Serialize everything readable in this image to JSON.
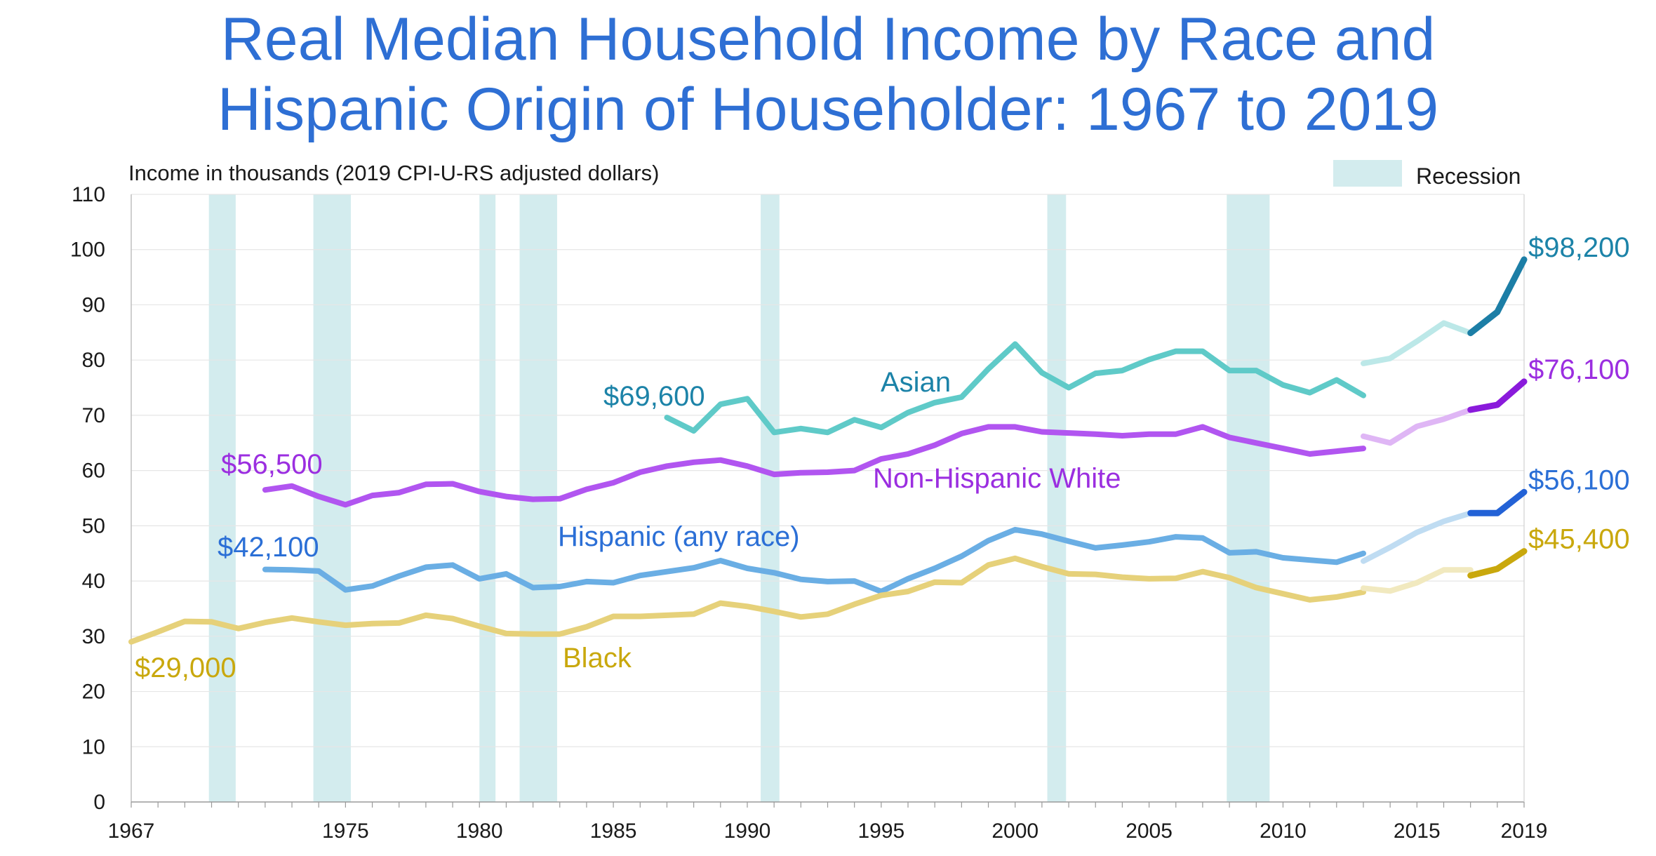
{
  "chart_data": {
    "type": "line",
    "title_lines": [
      "Real Median Household Income by Race and",
      "Hispanic Origin of Householder: 1967 to 2019"
    ],
    "ylabel": "Income in thousands (2019 CPI-U-RS adjusted dollars)",
    "xlabel": "",
    "ylim": [
      0,
      110
    ],
    "xlim": [
      1967,
      2019
    ],
    "yticks": [
      0,
      10,
      20,
      30,
      40,
      50,
      60,
      70,
      80,
      90,
      100,
      110
    ],
    "xticks": [
      1967,
      1975,
      1980,
      1985,
      1990,
      1995,
      2000,
      2005,
      2010,
      2015,
      2019
    ],
    "grid": true,
    "legend": {
      "label": "Recession",
      "placement": "top-right",
      "color": "#d3ecee"
    },
    "recessions": [
      [
        1969.9,
        1970.9
      ],
      [
        1973.8,
        1975.2
      ],
      [
        1980.0,
        1980.6
      ],
      [
        1981.5,
        1982.9
      ],
      [
        1990.5,
        1991.2
      ],
      [
        2001.2,
        2001.9
      ],
      [
        2007.9,
        2009.5
      ]
    ],
    "series": [
      {
        "name": "Asian",
        "color": "#5fcac8",
        "color_light": "#bce8e8",
        "color_dark": "#1c7ea6",
        "label_color": "#1c83a8",
        "value_label": "$98,200",
        "start_label": "$69,600",
        "start_label_color": "#1c83a8",
        "segments": [
          {
            "style": "main",
            "x": [
              1987,
              1988,
              1989,
              1990,
              1991,
              1992,
              1993,
              1994,
              1995,
              1996,
              1997,
              1998,
              1999,
              2000,
              2001,
              2002,
              2003,
              2004,
              2005,
              2006,
              2007,
              2008,
              2009,
              2010,
              2011,
              2012,
              2013
            ],
            "y": [
              69.6,
              67.2,
              72.0,
              73.0,
              66.9,
              67.6,
              66.9,
              69.2,
              67.8,
              70.5,
              72.3,
              73.3,
              78.4,
              82.9,
              77.7,
              75.0,
              77.6,
              78.1,
              80.1,
              81.6,
              81.6,
              78.1,
              78.1,
              75.5,
              74.1,
              76.4,
              73.6
            ]
          },
          {
            "style": "light",
            "x": [
              2013,
              2014,
              2015,
              2016,
              2017
            ],
            "y": [
              79.4,
              80.3,
              83.4,
              86.7,
              84.9
            ]
          },
          {
            "style": "dark",
            "x": [
              2017,
              2018,
              2019
            ],
            "y": [
              84.9,
              88.7,
              98.2
            ]
          }
        ]
      },
      {
        "name": "Non-Hispanic White",
        "color": "#b155f0",
        "color_light": "#dfb6f5",
        "color_dark": "#8a1adb",
        "label_color": "#9b2ee0",
        "value_label": "$76,100",
        "start_label": "$56,500",
        "start_label_color": "#9b2ee0",
        "segments": [
          {
            "style": "main",
            "x": [
              1972,
              1973,
              1974,
              1975,
              1976,
              1977,
              1978,
              1979,
              1980,
              1981,
              1982,
              1983,
              1984,
              1985,
              1986,
              1987,
              1988,
              1989,
              1990,
              1991,
              1992,
              1993,
              1994,
              1995,
              1996,
              1997,
              1998,
              1999,
              2000,
              2001,
              2002,
              2003,
              2004,
              2005,
              2006,
              2007,
              2008,
              2009,
              2010,
              2011,
              2012,
              2013
            ],
            "y": [
              56.5,
              57.2,
              55.3,
              53.8,
              55.5,
              56.0,
              57.5,
              57.6,
              56.2,
              55.3,
              54.8,
              54.9,
              56.6,
              57.8,
              59.7,
              60.8,
              61.5,
              61.9,
              60.8,
              59.3,
              59.6,
              59.7,
              60.0,
              62.1,
              63.0,
              64.6,
              66.7,
              67.9,
              67.9,
              67.0,
              66.8,
              66.6,
              66.3,
              66.6,
              66.6,
              67.9,
              66.0,
              65.0,
              64.0,
              63.0,
              63.5,
              64.0
            ]
          },
          {
            "style": "light",
            "x": [
              2013,
              2014,
              2015,
              2016,
              2017
            ],
            "y": [
              66.2,
              65.0,
              68.0,
              69.3,
              71.0
            ]
          },
          {
            "style": "dark",
            "x": [
              2017,
              2018,
              2019
            ],
            "y": [
              71.0,
              71.9,
              76.1
            ]
          }
        ]
      },
      {
        "name": "Hispanic (any race)",
        "color": "#6aaee4",
        "color_light": "#bfdcf2",
        "color_dark": "#2362d6",
        "label_color": "#2b6fd6",
        "value_label": "$56,100",
        "start_label": "$42,100",
        "start_label_color": "#2b6fd6",
        "segments": [
          {
            "style": "main",
            "x": [
              1972,
              1973,
              1974,
              1975,
              1976,
              1977,
              1978,
              1979,
              1980,
              1981,
              1982,
              1983,
              1984,
              1985,
              1986,
              1987,
              1988,
              1989,
              1990,
              1991,
              1992,
              1993,
              1994,
              1995,
              1996,
              1997,
              1998,
              1999,
              2000,
              2001,
              2002,
              2003,
              2004,
              2005,
              2006,
              2007,
              2008,
              2009,
              2010,
              2011,
              2012,
              2013
            ],
            "y": [
              42.1,
              42.0,
              41.8,
              38.4,
              39.1,
              40.9,
              42.5,
              42.9,
              40.4,
              41.3,
              38.8,
              39.0,
              39.9,
              39.7,
              41.0,
              41.7,
              42.4,
              43.7,
              42.3,
              41.5,
              40.3,
              39.9,
              40.0,
              38.1,
              40.4,
              42.3,
              44.5,
              47.3,
              49.3,
              48.5,
              47.2,
              46.0,
              46.5,
              47.1,
              48.0,
              47.8,
              45.1,
              45.3,
              44.2,
              43.8,
              43.4,
              45.0
            ]
          },
          {
            "style": "light",
            "x": [
              2013,
              2014,
              2015,
              2016,
              2017
            ],
            "y": [
              43.6,
              46.1,
              48.8,
              50.8,
              52.3
            ]
          },
          {
            "style": "dark",
            "x": [
              2017,
              2018,
              2019
            ],
            "y": [
              52.3,
              52.3,
              56.1
            ]
          }
        ]
      },
      {
        "name": "Black",
        "color": "#e6d17a",
        "color_light": "#f1e9bf",
        "color_dark": "#c9a80d",
        "label_color": "#c9a80d",
        "value_label": "$45,400",
        "start_label": "$29,000",
        "start_label_color": "#c9a80d",
        "segments": [
          {
            "style": "main",
            "x": [
              1967,
              1968,
              1969,
              1970,
              1971,
              1972,
              1973,
              1974,
              1975,
              1976,
              1977,
              1978,
              1979,
              1980,
              1981,
              1982,
              1983,
              1984,
              1985,
              1986,
              1987,
              1988,
              1989,
              1990,
              1991,
              1992,
              1993,
              1994,
              1995,
              1996,
              1997,
              1998,
              1999,
              2000,
              2001,
              2002,
              2003,
              2004,
              2005,
              2006,
              2007,
              2008,
              2009,
              2010,
              2011,
              2012,
              2013
            ],
            "y": [
              29.0,
              30.8,
              32.7,
              32.6,
              31.4,
              32.5,
              33.3,
              32.6,
              32.0,
              32.3,
              32.4,
              33.8,
              33.2,
              31.8,
              30.5,
              30.4,
              30.4,
              31.7,
              33.6,
              33.6,
              33.8,
              34.0,
              36.0,
              35.4,
              34.5,
              33.5,
              34.0,
              35.8,
              37.4,
              38.1,
              39.8,
              39.7,
              42.9,
              44.1,
              42.6,
              41.3,
              41.2,
              40.7,
              40.4,
              40.5,
              41.7,
              40.6,
              38.8,
              37.7,
              36.6,
              37.1,
              38.0
            ]
          },
          {
            "style": "light",
            "x": [
              2013,
              2014,
              2015,
              2016,
              2017
            ],
            "y": [
              38.7,
              38.2,
              39.7,
              42.0,
              42.0
            ]
          },
          {
            "style": "dark",
            "x": [
              2017,
              2018,
              2019
            ],
            "y": [
              41.0,
              42.2,
              45.4
            ]
          }
        ]
      }
    ]
  }
}
